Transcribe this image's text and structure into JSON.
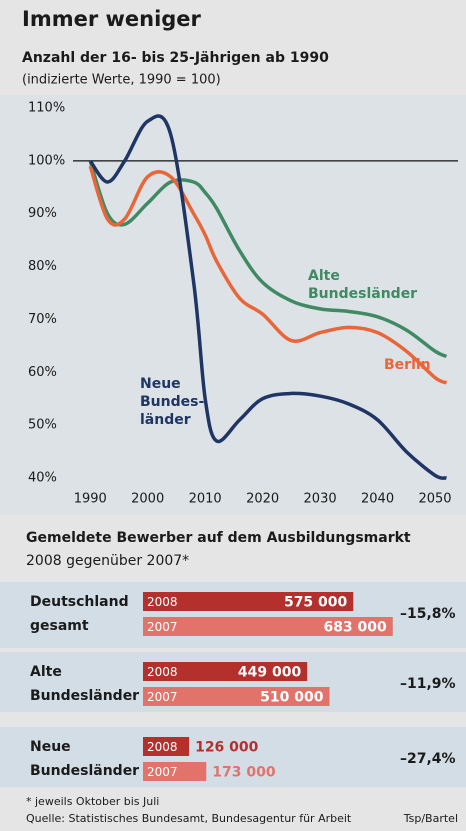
{
  "chart_data": [
    {
      "type": "line",
      "title": "Immer weniger",
      "subtitle": "Anzahl der 16- bis 25-Jährigen ab 1990",
      "note": "(indizierte Werte, 1990 = 100)",
      "x": [
        1990,
        1993,
        1996,
        2000,
        2004,
        2008,
        2010,
        2012,
        2016,
        2020,
        2025,
        2030,
        2035,
        2040,
        2045,
        2050,
        2052
      ],
      "xlim": [
        1987,
        2054
      ],
      "xticks": [
        1990,
        2000,
        2010,
        2020,
        2030,
        2040,
        2050
      ],
      "ylim": [
        40,
        110
      ],
      "yticks": [
        {
          "value": 40,
          "label": "40%"
        },
        {
          "value": 50,
          "label": "50%"
        },
        {
          "value": 60,
          "label": "60%"
        },
        {
          "value": 70,
          "label": "70%"
        },
        {
          "value": 80,
          "label": "80%"
        },
        {
          "value": 90,
          "label": "90%"
        },
        {
          "value": 100,
          "label": "100%"
        },
        {
          "value": 110,
          "label": "110%"
        }
      ],
      "reference_line": 100,
      "grid": false,
      "series": [
        {
          "name": [
            "Alte",
            "Bundesländer"
          ],
          "color": "#3f8a62",
          "values": [
            100,
            90,
            88,
            92,
            96,
            96,
            94,
            91,
            83,
            77,
            73.5,
            72,
            71.5,
            70.5,
            68,
            64,
            63
          ]
        },
        {
          "name": [
            "Berlin"
          ],
          "color": "#e8663a",
          "values": [
            99,
            89,
            89,
            97,
            97,
            90,
            86,
            81,
            74,
            71,
            66,
            67.5,
            68.5,
            67.5,
            64,
            59,
            58
          ]
        },
        {
          "name": [
            "Neue",
            "Bundes-",
            "länder"
          ],
          "color": "#1f3564",
          "values": [
            100,
            96,
            100,
            107.5,
            105,
            77,
            55,
            47,
            51,
            55,
            56,
            55.5,
            54,
            51,
            45,
            40.5,
            40
          ]
        }
      ]
    },
    {
      "type": "hbar",
      "title": "Gemeldete Bewerber auf dem Ausbildungsmarkt",
      "subtitle": "2008 gegenüber 2007*",
      "categories": [
        [
          "Deutschland",
          "gesamt"
        ],
        [
          "Alte",
          "Bundesländer"
        ],
        [
          "Neue",
          "Bundesländer"
        ]
      ],
      "xlim": [
        0,
        700000
      ],
      "series": [
        {
          "name": "2008",
          "color": "#b3302d",
          "values": [
            575000,
            449000,
            126000
          ],
          "value_labels": [
            "575 000",
            "449 000",
            "126 000"
          ]
        },
        {
          "name": "2007",
          "color": "#e2736b",
          "values": [
            683000,
            510000,
            173000
          ],
          "value_labels": [
            "683 000",
            "510 000",
            "173 000"
          ]
        }
      ],
      "change": {
        "values": [
          -15.8,
          -11.9,
          -27.4
        ],
        "value_labels": [
          "–15,8%",
          "–11,9%",
          "–27,4%"
        ]
      },
      "footnote": "* jeweils Oktober bis Juli",
      "source": "Quelle: Statistisches Bundesamt, Bundesagentur für Arbeit",
      "credit": "Tsp/Bartel"
    }
  ]
}
